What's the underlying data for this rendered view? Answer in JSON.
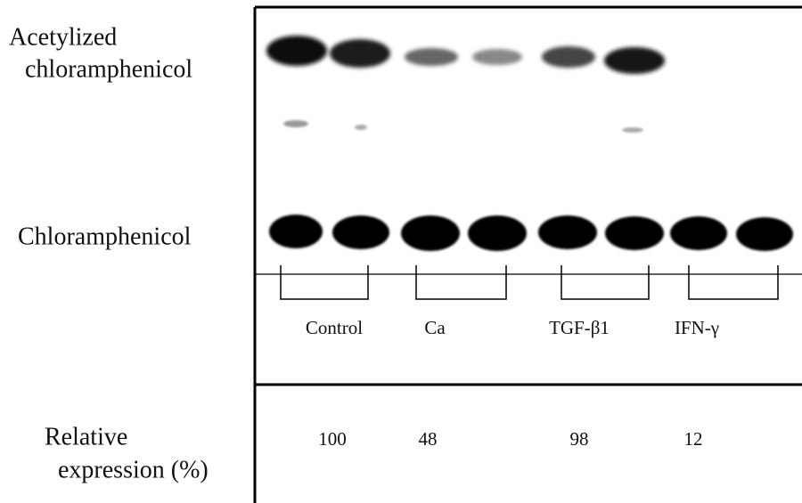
{
  "row_labels": {
    "acetylized": [
      "Acetylized",
      "chloramphenicol"
    ],
    "chloramphenicol": "Chloramphenicol",
    "relative": [
      "Relative",
      "expression (%)"
    ]
  },
  "groups": [
    {
      "name": "Control",
      "relative_expression": 100
    },
    {
      "name": "Ca",
      "relative_expression": 48
    },
    {
      "name": "TGF-β1",
      "relative_expression": 98
    },
    {
      "name": "IFN-γ",
      "relative_expression": 12
    }
  ]
}
